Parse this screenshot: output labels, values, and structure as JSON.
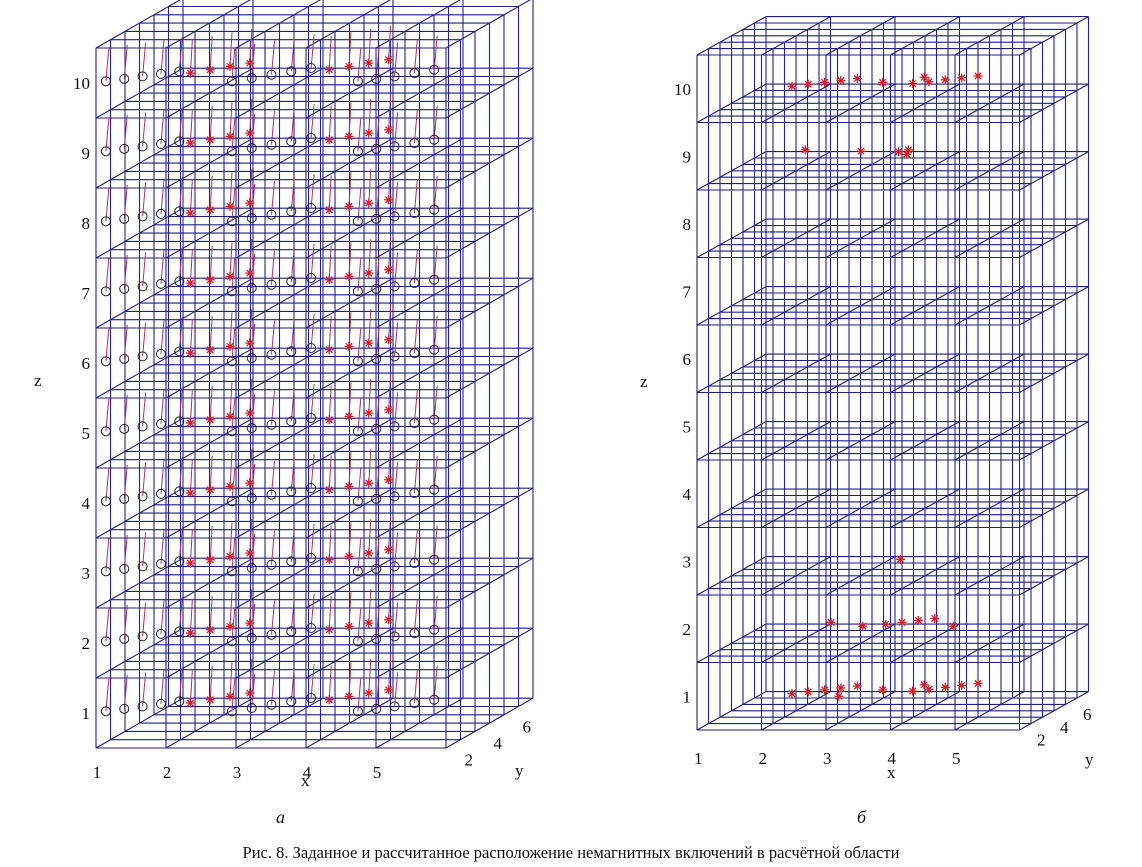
{
  "caption": "Рис. 8. Заданное и рассчитанное расположение немагнитных включений в расчётной области",
  "panels": [
    {
      "id": "a",
      "label": "а",
      "axes": {
        "x": "x",
        "y": "y",
        "z": "z"
      },
      "z_ticks": [
        "1",
        "2",
        "3",
        "4",
        "5",
        "6",
        "7",
        "8",
        "9",
        "10"
      ],
      "x_ticks": [
        "1",
        "2",
        "3",
        "4",
        "5"
      ],
      "y_ticks": [
        "2",
        "4",
        "6"
      ],
      "colors": {
        "grid": "#1f1f8a",
        "star": "#d0202a",
        "circle": "#222222",
        "arrow": "#b03060"
      }
    },
    {
      "id": "b",
      "label": "б",
      "axes": {
        "x": "x",
        "y": "y",
        "z": "z"
      },
      "z_ticks": [
        "1",
        "2",
        "3",
        "4",
        "5",
        "6",
        "7",
        "8",
        "9",
        "10"
      ],
      "x_ticks": [
        "1",
        "2",
        "3",
        "4",
        "5"
      ],
      "y_ticks": [
        "2",
        "4",
        "6"
      ],
      "colors": {
        "grid": "#1f1f8a",
        "star": "#d0202a"
      }
    }
  ],
  "chart_data": [
    {
      "type": "scatter",
      "panel": "а",
      "title": "",
      "xlabel": "x",
      "ylabel": "y",
      "zlabel": "z",
      "xlim": [
        0.5,
        5.5
      ],
      "ylim": [
        1,
        7
      ],
      "zlim": [
        0.5,
        10.5
      ],
      "x_ticks": [
        1,
        2,
        3,
        4,
        5
      ],
      "y_ticks": [
        2,
        4,
        6
      ],
      "z_ticks": [
        1,
        2,
        3,
        4,
        5,
        6,
        7,
        8,
        9,
        10
      ],
      "series": [
        {
          "marker": "circle",
          "description_layers": [
            1,
            2,
            3,
            4,
            5,
            6,
            7,
            8,
            9,
            10
          ],
          "points_per_layer": [
            [
              0.6,
              1.2
            ],
            [
              0.8,
              1.5
            ],
            [
              1.0,
              1.8
            ],
            [
              1.2,
              2.1
            ],
            [
              1.4,
              2.4
            ],
            [
              2.4,
              1.2
            ],
            [
              2.6,
              1.6
            ],
            [
              2.8,
              2.0
            ],
            [
              3.0,
              2.4
            ],
            [
              3.2,
              2.8
            ],
            [
              4.2,
              1.2
            ],
            [
              4.4,
              1.5
            ],
            [
              4.6,
              1.8
            ],
            [
              4.8,
              2.2
            ],
            [
              5.0,
              2.6
            ]
          ]
        },
        {
          "marker": "star",
          "description_layers": [
            1,
            2,
            3,
            4,
            5,
            6,
            7,
            8,
            9,
            10
          ],
          "points_per_layer": [
            [
              1.6,
              2.2
            ],
            [
              1.8,
              2.6
            ],
            [
              2.0,
              3.0
            ],
            [
              2.2,
              3.4
            ],
            [
              3.5,
              2.6
            ],
            [
              3.7,
              3.0
            ],
            [
              3.9,
              3.4
            ],
            [
              4.1,
              3.8
            ]
          ]
        }
      ]
    },
    {
      "type": "scatter",
      "panel": "б",
      "title": "",
      "xlabel": "x",
      "ylabel": "y",
      "zlabel": "z",
      "xlim": [
        0.5,
        5.5
      ],
      "ylim": [
        1,
        7
      ],
      "zlim": [
        0.5,
        10.5
      ],
      "x_ticks": [
        1,
        2,
        3,
        4,
        5
      ],
      "y_ticks": [
        2,
        4,
        6
      ],
      "z_ticks": [
        1,
        2,
        3,
        4,
        5,
        6,
        7,
        8,
        9,
        10
      ],
      "series": [
        {
          "marker": "star",
          "points": [
            [
              1.9,
              1.4,
              10
            ],
            [
              2.1,
              1.7,
              10
            ],
            [
              2.3,
              2.0,
              10
            ],
            [
              2.5,
              2.3,
              10
            ],
            [
              2.7,
              2.6,
              10
            ],
            [
              3.2,
              2.0,
              10
            ],
            [
              3.7,
              2.8,
              10
            ],
            [
              3.7,
              1.8,
              10
            ],
            [
              3.9,
              2.1,
              10
            ],
            [
              4.1,
              2.4,
              10
            ],
            [
              4.3,
              2.7,
              10
            ],
            [
              4.5,
              3.0,
              10
            ],
            [
              2.0,
              2.0,
              9
            ],
            [
              2.9,
              1.8,
              9
            ],
            [
              3.5,
              1.7,
              9
            ],
            [
              3.6,
              2.0,
              9
            ],
            [
              3.7,
              1.3,
              9
            ],
            [
              3.6,
              1.3,
              3
            ],
            [
              2.4,
              2.0,
              2
            ],
            [
              3.0,
              1.4,
              2
            ],
            [
              3.3,
              1.7,
              2
            ],
            [
              3.5,
              2.0,
              2
            ],
            [
              3.7,
              2.3,
              2
            ],
            [
              3.9,
              2.6,
              2
            ],
            [
              4.4,
              1.4,
              2
            ],
            [
              1.9,
              1.4,
              1
            ],
            [
              2.1,
              1.7,
              1
            ],
            [
              2.3,
              2.0,
              1
            ],
            [
              2.5,
              2.3,
              1
            ],
            [
              2.7,
              2.6,
              1
            ],
            [
              2.7,
              1.0,
              1
            ],
            [
              3.2,
              2.0,
              1
            ],
            [
              3.7,
              2.8,
              1
            ],
            [
              3.7,
              1.8,
              1
            ],
            [
              3.9,
              2.1,
              1
            ],
            [
              4.1,
              2.4,
              1
            ],
            [
              4.3,
              2.7,
              1
            ],
            [
              4.5,
              3.0,
              1
            ]
          ]
        }
      ]
    }
  ]
}
